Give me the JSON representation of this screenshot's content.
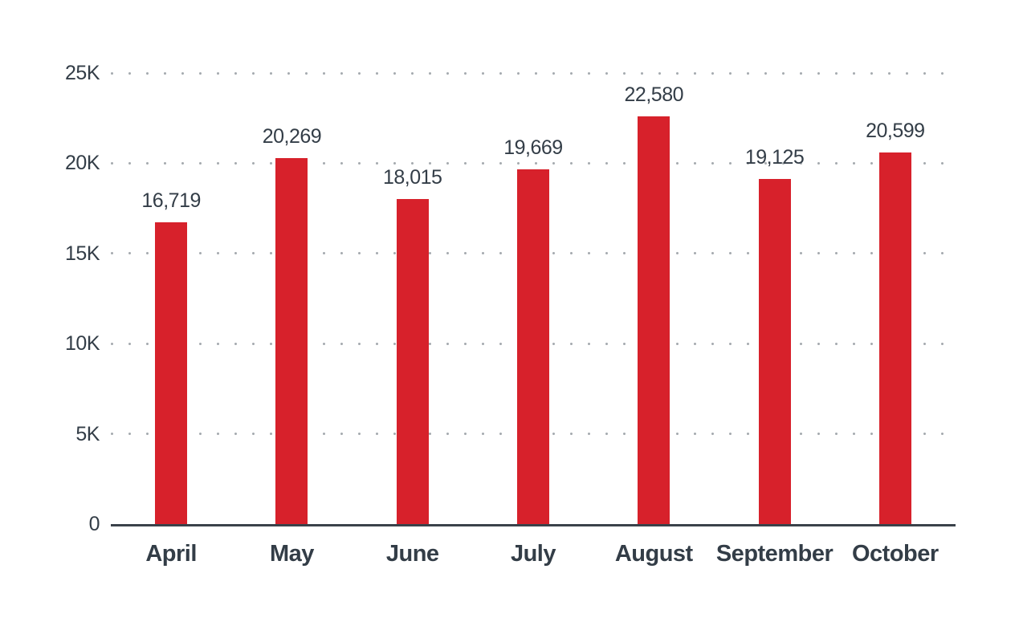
{
  "chart_data": {
    "type": "bar",
    "title": "",
    "xlabel": "",
    "ylabel": "",
    "categories": [
      "April",
      "May",
      "June",
      "July",
      "August",
      "September",
      "October"
    ],
    "values": [
      16719,
      20269,
      18015,
      19669,
      22580,
      19125,
      20599
    ],
    "value_labels": [
      "16,719",
      "20,269",
      "18,015",
      "19,669",
      "22,580",
      "19,125",
      "20,599"
    ],
    "ylim": [
      0,
      25000
    ],
    "y_ticks": [
      {
        "value": 0,
        "label": "0"
      },
      {
        "value": 5000,
        "label": "5K"
      },
      {
        "value": 10000,
        "label": "10K"
      },
      {
        "value": 15000,
        "label": "15K"
      },
      {
        "value": 20000,
        "label": "20K"
      },
      {
        "value": 25000,
        "label": "25K"
      }
    ],
    "grid": "horizontal-dotted",
    "legend": "none",
    "colors": {
      "bar": "#d7212b",
      "text": "#333d47",
      "axis": "#3a424a",
      "grid_dot": "#a6abb0",
      "background": "#ffffff"
    }
  }
}
